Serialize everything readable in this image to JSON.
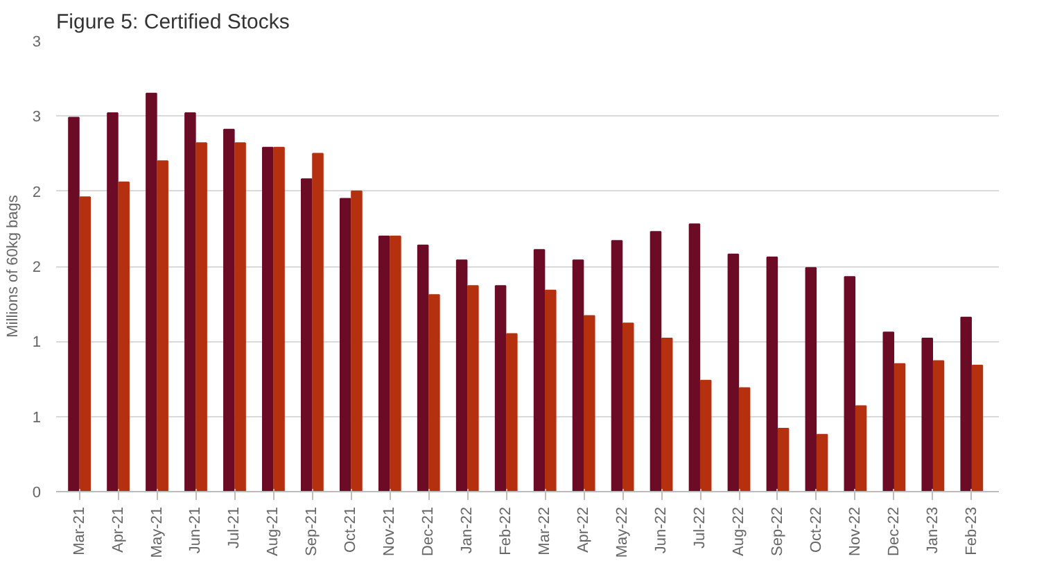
{
  "chart_data": {
    "type": "bar",
    "title": "Figure 5: Certified Stocks",
    "ylabel": "Millions of 60kg bags",
    "categories": [
      "Mar-21",
      "Apr-21",
      "May-21",
      "Jun-21",
      "Jul-21",
      "Aug-21",
      "Sep-21",
      "Oct-21",
      "Nov-21",
      "Dec-21",
      "Jan-22",
      "Feb-22",
      "Mar-22",
      "Apr-22",
      "May-22",
      "Jun-22",
      "Jul-22",
      "Aug-22",
      "Sep-22",
      "Oct-22",
      "Nov-22",
      "Dec-22",
      "Jan-23",
      "Feb-23"
    ],
    "series": [
      {
        "color": "#6b0b26",
        "values": [
          2.49,
          2.52,
          2.65,
          2.52,
          2.41,
          2.29,
          2.08,
          1.95,
          1.7,
          1.64,
          1.54,
          1.37,
          1.61,
          1.54,
          1.67,
          1.73,
          1.78,
          1.58,
          1.56,
          1.49,
          1.43,
          1.06,
          1.02,
          1.16
        ]
      },
      {
        "color": "#b5300f",
        "values": [
          1.96,
          2.06,
          2.2,
          2.32,
          2.32,
          2.29,
          2.25,
          2.0,
          1.7,
          1.31,
          1.37,
          1.05,
          1.34,
          1.17,
          1.12,
          1.02,
          0.74,
          0.69,
          0.42,
          0.38,
          0.57,
          0.85,
          0.87,
          0.84
        ]
      }
    ],
    "ylim": [
      0,
      3
    ],
    "yticks": [
      0,
      {
        "value": 0.5,
        "label": "1"
      },
      1,
      {
        "value": 1.5,
        "label": "2"
      },
      2,
      {
        "value": 2.5,
        "label": "3"
      },
      3
    ],
    "grid": "y"
  }
}
